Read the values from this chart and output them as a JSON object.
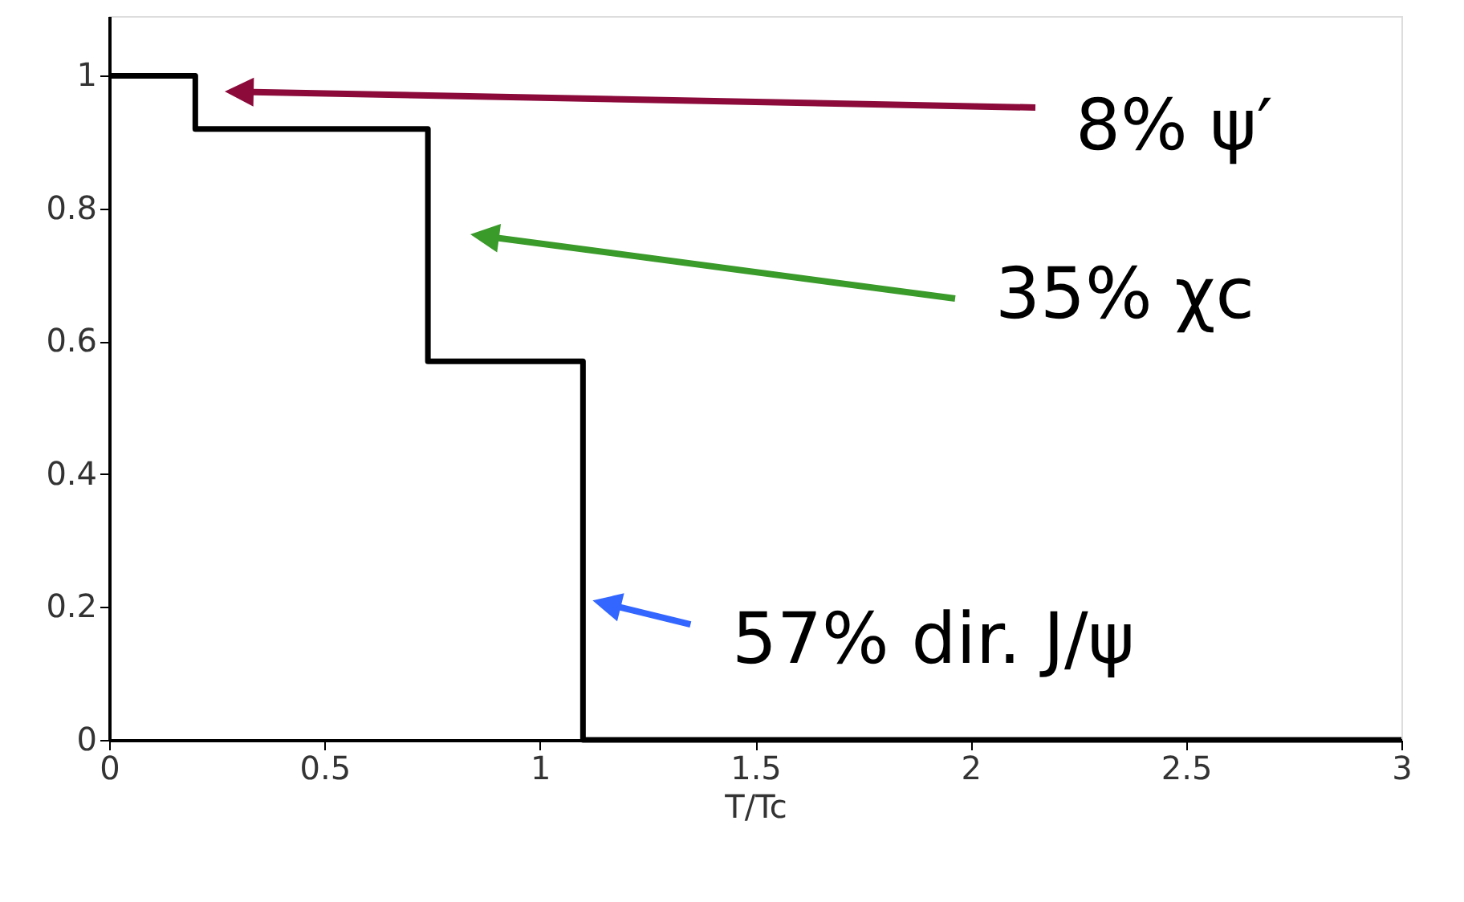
{
  "chart_data": {
    "type": "step",
    "x": [
      0,
      0.2,
      0.74,
      1.1,
      3
    ],
    "series": [
      {
        "color": "#000000",
        "values": [
          1,
          0.92,
          0.57,
          0,
          0
        ]
      }
    ],
    "xlabel": "T/Tc",
    "xlim": [
      0,
      3
    ],
    "xticks": [
      0,
      0.5,
      1,
      1.5,
      2,
      2.5,
      3
    ],
    "ylim": [
      0,
      1.09
    ],
    "yticks": [
      0,
      0.2,
      0.4,
      0.6,
      0.8,
      1
    ],
    "grid": false,
    "marker": "none",
    "line_style": "solid",
    "annotations": [
      "8% ψ′",
      "35% χc",
      {
        "text": "57% dir. J/ψ",
        "x": 1.1,
        "y": 0.21
      }
    ]
  }
}
